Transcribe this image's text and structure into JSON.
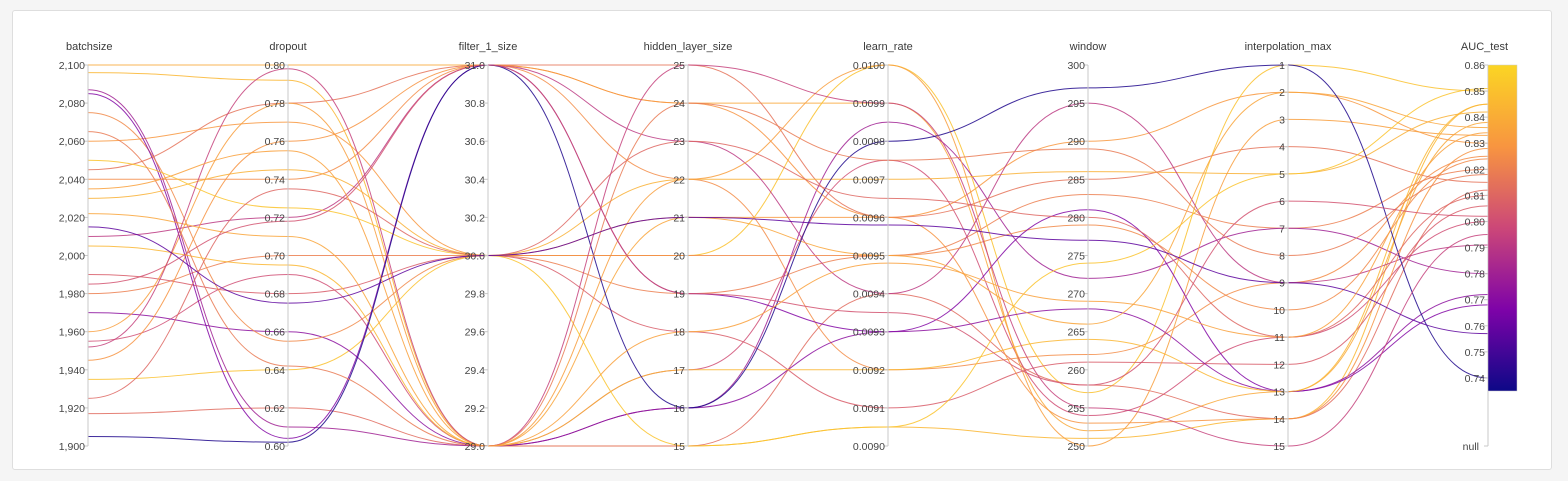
{
  "chart_data": {
    "type": "parallel-coordinates",
    "color_scale": {
      "metric": "AUC_test",
      "min": 0.735,
      "max": 0.86,
      "stops": [
        "#0d0887",
        "#7e03a8",
        "#cc4778",
        "#f89540",
        "#fbd524"
      ]
    },
    "axes": [
      {
        "name": "batchsize",
        "min": 1900,
        "max": 2100,
        "ticks": [
          "1,900",
          "1,920",
          "1,940",
          "1,960",
          "1,980",
          "2,000",
          "2,020",
          "2,040",
          "2,060",
          "2,080",
          "2,100"
        ]
      },
      {
        "name": "dropout",
        "min": 0.6,
        "max": 0.8,
        "ticks": [
          "0.60",
          "0.62",
          "0.64",
          "0.66",
          "0.68",
          "0.70",
          "0.72",
          "0.74",
          "0.76",
          "0.78",
          "0.80"
        ]
      },
      {
        "name": "filter_1_size",
        "min": 29,
        "max": 31,
        "ticks": [
          "29.0",
          "29.2",
          "29.4",
          "29.6",
          "29.8",
          "30.0",
          "30.2",
          "30.4",
          "30.6",
          "30.8",
          "31.0"
        ]
      },
      {
        "name": "hidden_layer_size",
        "min": 15,
        "max": 25,
        "ticks": [
          "15",
          "16",
          "17",
          "18",
          "19",
          "20",
          "21",
          "22",
          "23",
          "24",
          "25"
        ]
      },
      {
        "name": "learn_rate",
        "min": 0.009,
        "max": 0.01,
        "ticks": [
          "0.0090",
          "0.0091",
          "0.0092",
          "0.0093",
          "0.0094",
          "0.0095",
          "0.0096",
          "0.0097",
          "0.0098",
          "0.0099",
          "0.0100"
        ]
      },
      {
        "name": "window",
        "min": 250,
        "max": 300,
        "ticks": [
          "250",
          "255",
          "260",
          "265",
          "270",
          "275",
          "280",
          "285",
          "290",
          "295",
          "300"
        ]
      },
      {
        "name": "interpolation_max",
        "min": 1,
        "max": 15,
        "inverted": true,
        "ticks": [
          "1",
          "2",
          "3",
          "4",
          "5",
          "6",
          "7",
          "8",
          "9",
          "10",
          "11",
          "12",
          "13",
          "14",
          "15"
        ]
      },
      {
        "name": "AUC_test",
        "min": 0.735,
        "max": 0.86,
        "has_null": true,
        "ticks": [
          "0.74",
          "0.75",
          "0.76",
          "0.77",
          "0.78",
          "0.79",
          "0.80",
          "0.81",
          "0.82",
          "0.83",
          "0.84",
          "0.85",
          "0.86"
        ],
        "null_label": "null"
      }
    ],
    "runs": [
      [
        2096,
        0.792,
        29,
        15,
        0.00905,
        251,
        14,
        0.845
      ],
      [
        2100,
        0.8,
        31,
        24,
        0.0099,
        252,
        13,
        0.838
      ],
      [
        2060,
        0.77,
        30,
        21,
        0.0096,
        290,
        2,
        0.83
      ],
      [
        2040,
        0.74,
        31,
        22,
        0.0092,
        262,
        9,
        0.825
      ],
      [
        1980,
        0.7,
        30,
        19,
        0.0095,
        283,
        7,
        0.82
      ],
      [
        1955,
        0.69,
        29,
        17,
        0.00975,
        254,
        11,
        0.8
      ],
      [
        1935,
        0.64,
        30,
        20,
        0.01,
        257,
        1,
        0.85
      ],
      [
        1917,
        0.62,
        29,
        15,
        0.0094,
        258,
        14,
        0.812
      ],
      [
        2087,
        0.61,
        29,
        16,
        0.00985,
        272,
        7,
        0.78
      ],
      [
        2045,
        0.78,
        31,
        25,
        0.0096,
        285,
        4,
        0.815
      ],
      [
        2030,
        0.745,
        30,
        22,
        0.0097,
        286,
        5,
        0.842
      ],
      [
        2010,
        0.72,
        31,
        23,
        0.0094,
        295,
        9,
        0.791
      ],
      [
        1990,
        0.68,
        30,
        18,
        0.0091,
        261,
        12,
        0.806
      ],
      [
        1970,
        0.66,
        29,
        16,
        0.0093,
        268,
        13,
        0.772
      ],
      [
        1960,
        0.78,
        29,
        22,
        0.01,
        250,
        3,
        0.833
      ],
      [
        1945,
        0.76,
        31,
        24,
        0.0096,
        253,
        14,
        0.828
      ],
      [
        2075,
        0.655,
        30,
        20,
        0.0095,
        279,
        10,
        0.824
      ],
      [
        2085,
        0.604,
        31,
        19,
        0.0093,
        281,
        13,
        0.768
      ],
      [
        2022,
        0.71,
        29,
        21,
        0.0095,
        266,
        2,
        0.836
      ],
      [
        2005,
        0.695,
        29,
        17,
        0.0092,
        264,
        13,
        0.845
      ],
      [
        2050,
        0.725,
        30,
        15,
        0.00905,
        274,
        5,
        0.851
      ],
      [
        1905,
        0.602,
        31,
        16,
        0.0098,
        297,
        1,
        0.74
      ],
      [
        1925,
        0.735,
        30,
        23,
        0.00965,
        280,
        11,
        0.81
      ],
      [
        1952,
        0.798,
        29,
        25,
        0.0099,
        255,
        15,
        0.795
      ],
      [
        2065,
        0.642,
        29,
        24,
        0.00975,
        289,
        8,
        0.818
      ],
      [
        2015,
        0.675,
        30,
        21,
        0.00958,
        277,
        9,
        0.757
      ],
      [
        1985,
        0.718,
        31,
        19,
        0.00935,
        258,
        6,
        0.802
      ],
      [
        2035,
        0.755,
        29,
        18,
        0.00948,
        269,
        11,
        0.834
      ]
    ]
  }
}
